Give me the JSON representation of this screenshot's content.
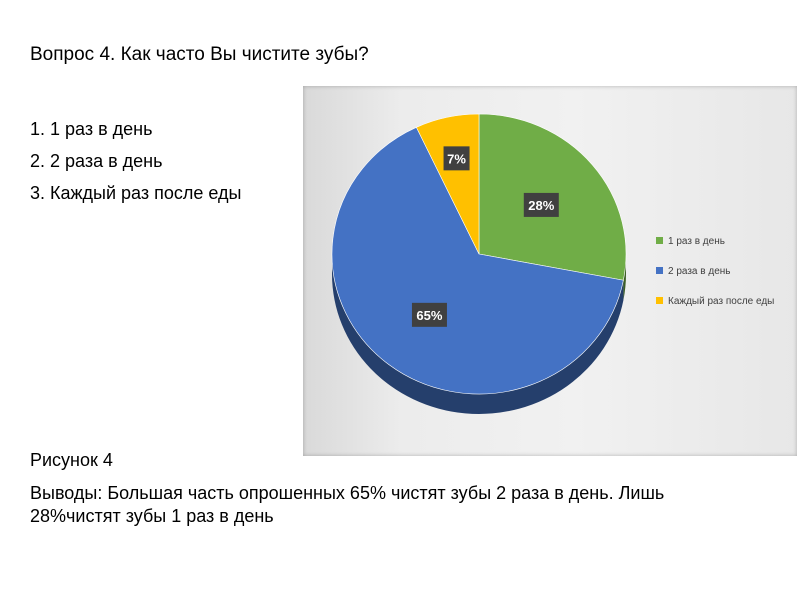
{
  "question": "Вопрос 4. Как часто Вы чистите зубы?",
  "options": [
    "1. 1 раз в день",
    "2. 2 раза в день",
    "3. Каждый раз после еды"
  ],
  "figure_caption": "Рисунок 4",
  "conclusion": "Выводы: Большая часть опрошенных 65% чистят зубы 2 раза в день. Лишь 28%чистят зубы 1 раз в день",
  "chart_data": {
    "type": "pie",
    "title": "",
    "categories": [
      "1 раз в день",
      "2 раза в день",
      "Каждый раз после еды"
    ],
    "values": [
      28,
      65,
      7
    ],
    "data_labels": [
      "28%",
      "65%",
      "7%"
    ],
    "colors": [
      "#70ad47",
      "#4472c4",
      "#ffc000"
    ],
    "start": "12 o'clock, clockwise",
    "style": "3d",
    "legend": "right",
    "label_style": "dark-box-white-text"
  }
}
